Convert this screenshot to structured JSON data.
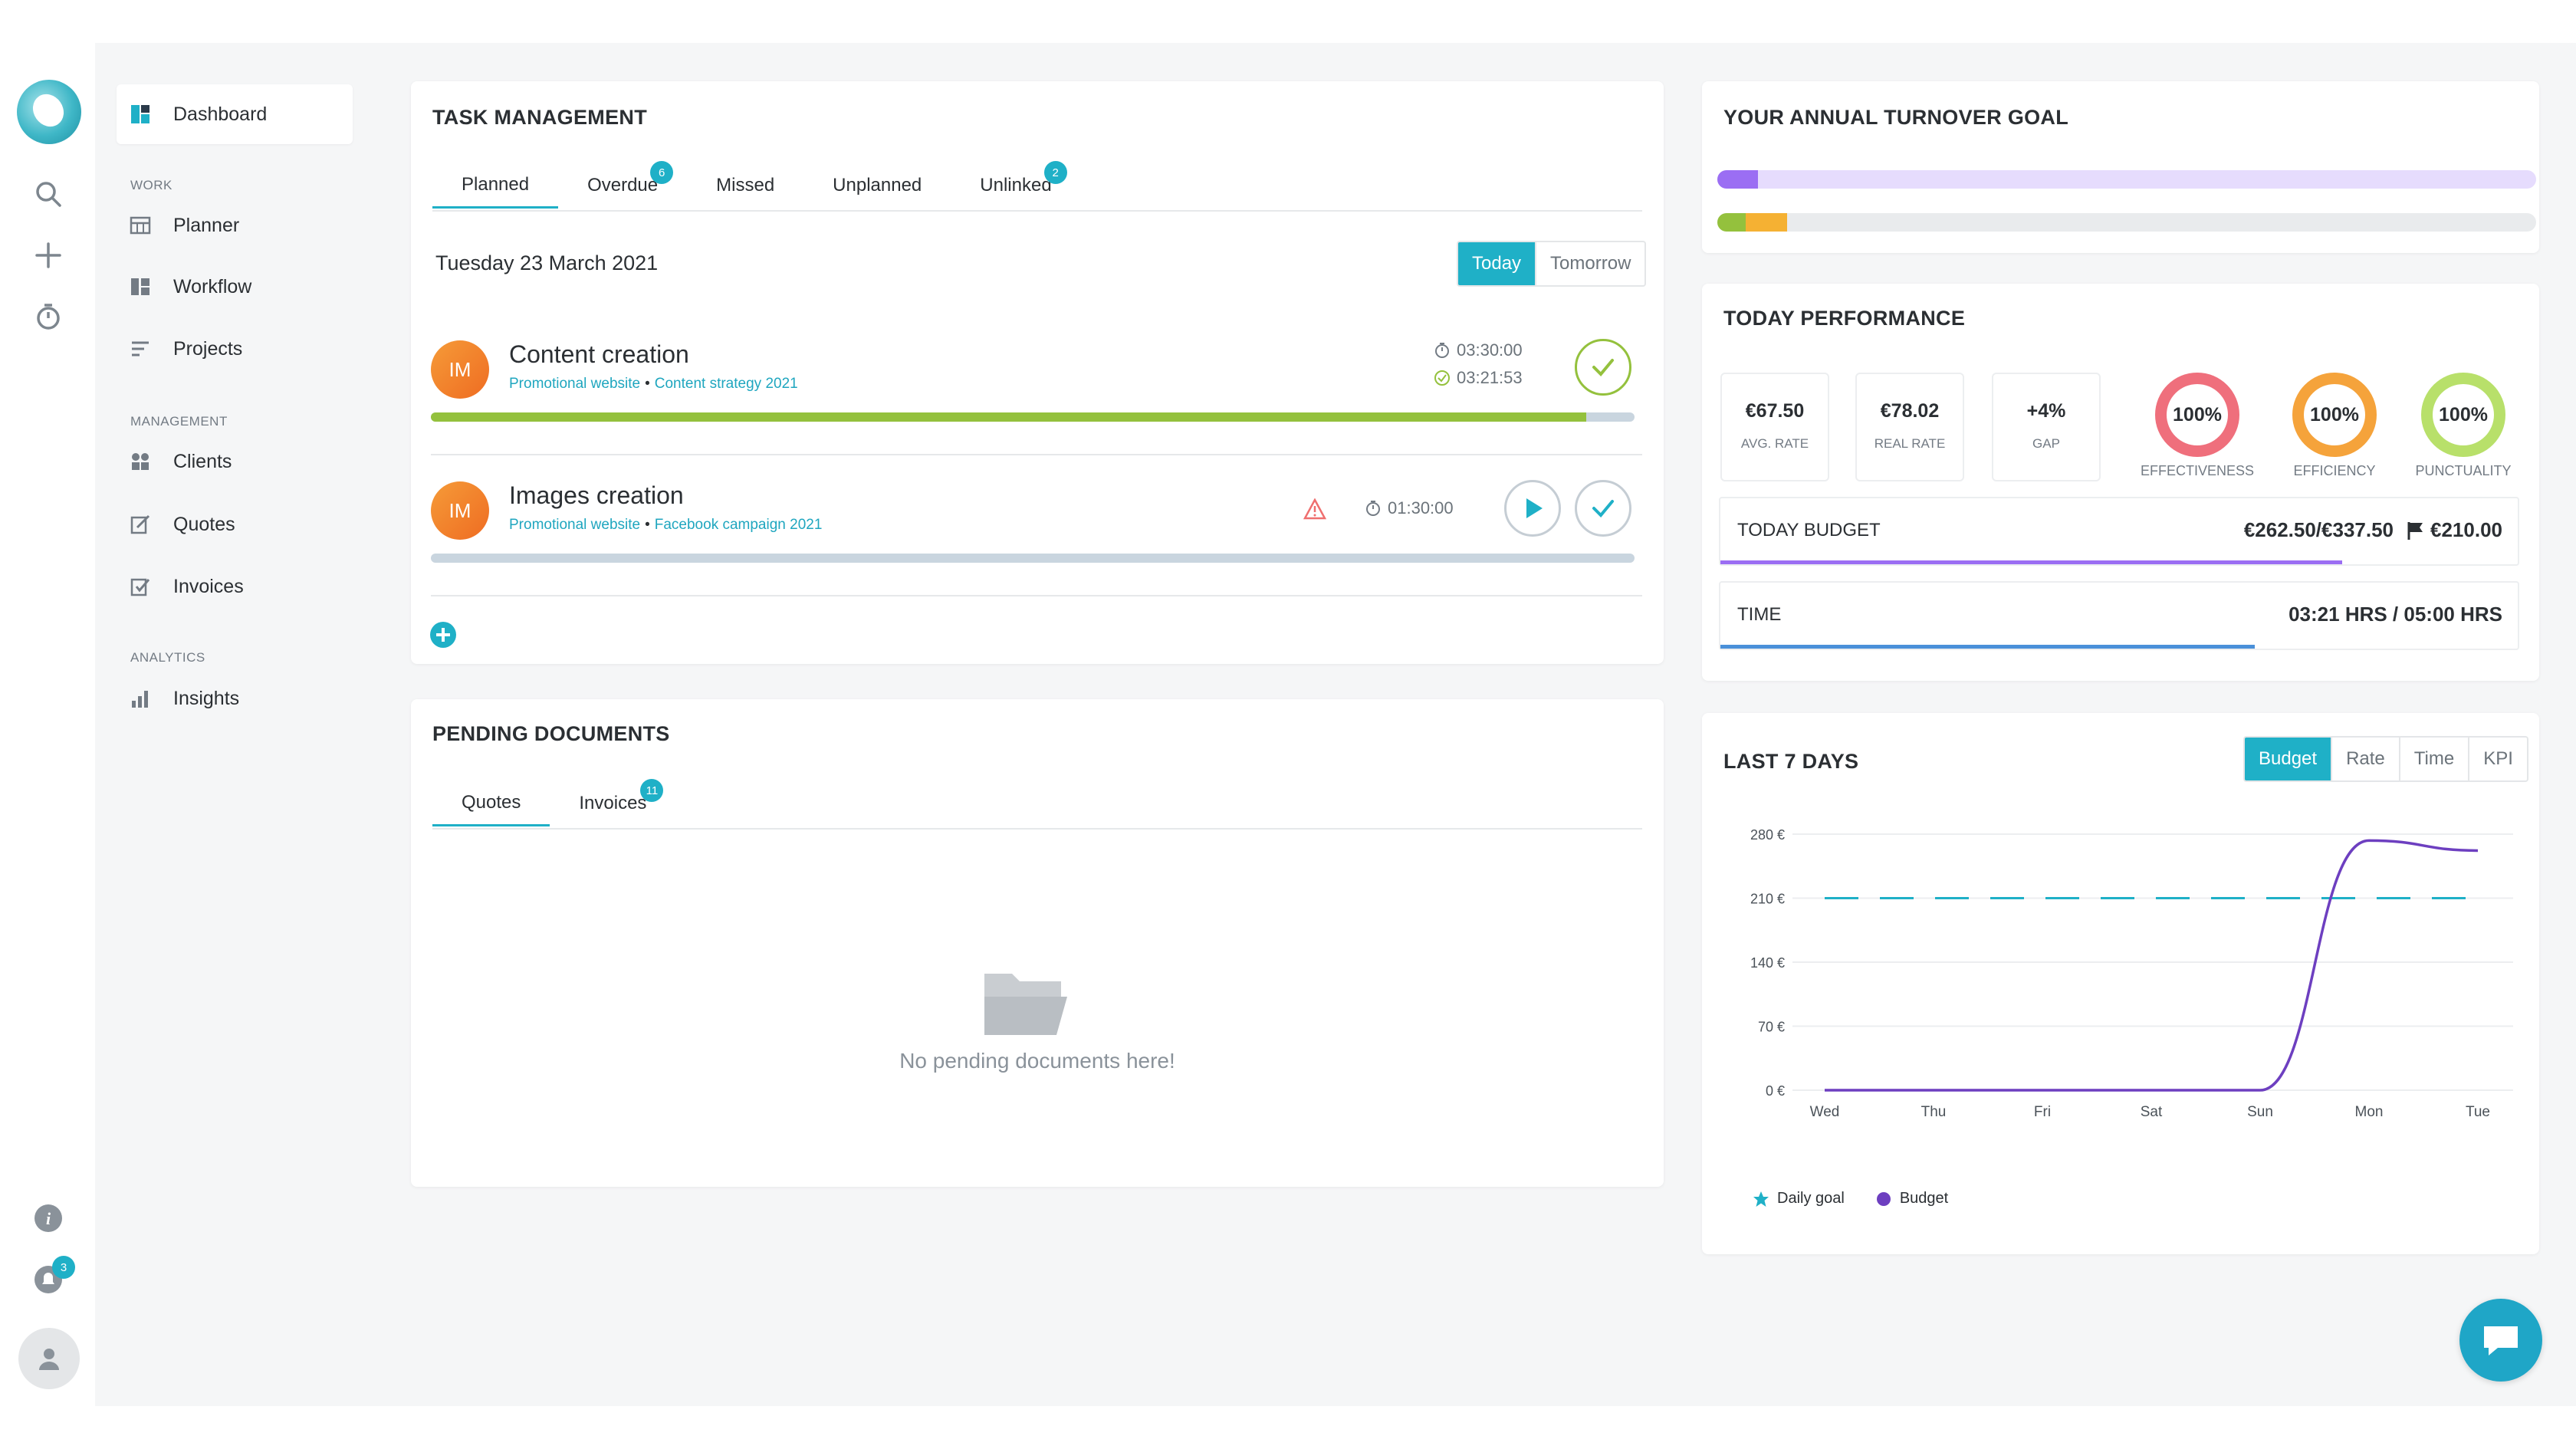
{
  "sidebar": {
    "notifications_count": "3",
    "dashboard_label": "Dashboard",
    "sections": {
      "work": "WORK",
      "management": "MANAGEMENT",
      "analytics": "ANALYTICS"
    },
    "items": {
      "planner": "Planner",
      "workflow": "Workflow",
      "projects": "Projects",
      "clients": "Clients",
      "quotes": "Quotes",
      "invoices": "Invoices",
      "insights": "Insights"
    },
    "icons": [
      "logo",
      "search-icon",
      "plus-icon",
      "timer-icon",
      "info-icon",
      "bell-icon",
      "user-icon"
    ]
  },
  "task_management": {
    "title": "TASK MANAGEMENT",
    "tabs": [
      {
        "label": "Planned",
        "badge": ""
      },
      {
        "label": "Overdue",
        "badge": "6"
      },
      {
        "label": "Missed",
        "badge": ""
      },
      {
        "label": "Unplanned",
        "badge": ""
      },
      {
        "label": "Unlinked",
        "badge": "2"
      }
    ],
    "date": "Tuesday 23 March 2021",
    "day_toggle": {
      "today": "Today",
      "tomorrow": "Tomorrow"
    },
    "tasks": [
      {
        "initials": "IM",
        "name": "Content creation",
        "project": "Promotional website",
        "campaign": "Content strategy 2021",
        "planned_time": "03:30:00",
        "spent_time": "03:21:53",
        "progress": 0.96
      },
      {
        "initials": "IM",
        "name": "Images creation",
        "project": "Promotional website",
        "campaign": "Facebook campaign 2021",
        "planned_time": "01:30:00",
        "progress": 0
      }
    ]
  },
  "pending_documents": {
    "title": "PENDING DOCUMENTS",
    "tabs": [
      {
        "label": "Quotes",
        "badge": ""
      },
      {
        "label": "Invoices",
        "badge": "11"
      }
    ],
    "empty_message": "No pending documents here!"
  },
  "turnover_goal": {
    "title": "YOUR ANNUAL TURNOVER GOAL",
    "bar1_fill": 0.05,
    "bar2_fill_green": 0.035,
    "bar2_fill_orange": 0.05,
    "colors": {
      "purple": "#9b6ef3",
      "purple_light": "#e6dcfd",
      "green": "#94c13d",
      "orange": "#f5b133",
      "gray": "#e9ebed"
    }
  },
  "today_performance": {
    "title": "TODAY PERFORMANCE",
    "stats": [
      {
        "value": "€67.50",
        "label": "AVG. RATE"
      },
      {
        "value": "€78.02",
        "label": "REAL RATE"
      },
      {
        "value": "+4%",
        "label": "GAP"
      }
    ],
    "rings": [
      {
        "value": "100%",
        "label": "EFFECTIVENESS",
        "color": "#ef6f7c"
      },
      {
        "value": "100%",
        "label": "EFFICIENCY",
        "color": "#f5a33b"
      },
      {
        "value": "100%",
        "label": "PUNCTUALITY",
        "color": "#b8e06a"
      }
    ],
    "budget": {
      "label": "TODAY BUDGET",
      "value": "€262.50/€337.50",
      "goal": "€210.00",
      "fill": 0.78
    },
    "time": {
      "label": "TIME",
      "value": "03:21 HRS / 05:00 HRS",
      "fill": 0.67
    }
  },
  "last7": {
    "title": "LAST 7 DAYS",
    "toggle": [
      {
        "label": "Budget",
        "on": true
      },
      {
        "label": "Rate",
        "on": false
      },
      {
        "label": "Time",
        "on": false
      },
      {
        "label": "KPI",
        "on": false
      }
    ]
  },
  "chart_data": {
    "type": "line",
    "categories": [
      "Wed",
      "Thu",
      "Fri",
      "Sat",
      "Sun",
      "Mon",
      "Tue"
    ],
    "y_ticks": [
      "0 €",
      "70 €",
      "140 €",
      "210 €",
      "280 €"
    ],
    "ylim": [
      0,
      280
    ],
    "series": [
      {
        "name": "Daily goal",
        "values": [
          210,
          210,
          210,
          210,
          210,
          210,
          210
        ],
        "color": "#1fb0c7",
        "style": "dashed"
      },
      {
        "name": "Budget",
        "values": [
          0,
          0,
          0,
          0,
          0,
          273,
          262
        ],
        "color": "#6d3fc0",
        "style": "solid"
      }
    ],
    "legend": "bottom-left",
    "grid": true
  }
}
